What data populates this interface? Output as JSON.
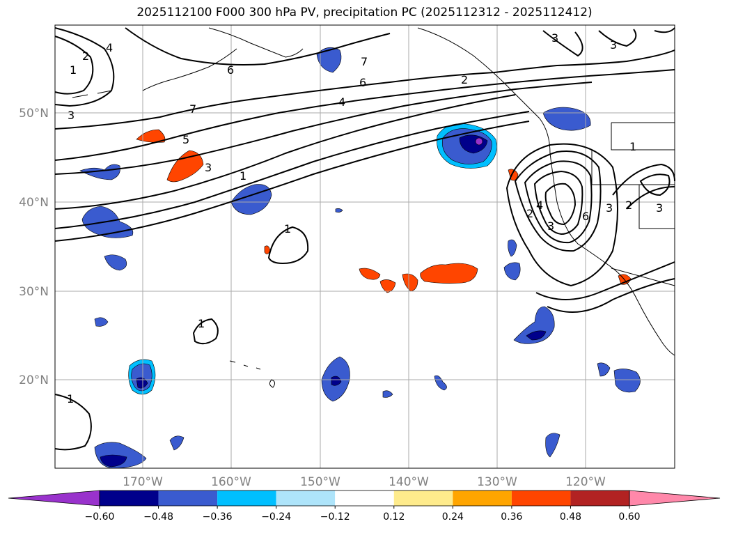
{
  "title": "2025112100 F000 300 hPa PV, precipitation PC (2025112312 - 2025112412)",
  "map": {
    "lat_labels": [
      "50°N",
      "40°N",
      "30°N",
      "20°N"
    ],
    "lon_labels": [
      "170°W",
      "160°W",
      "150°W",
      "140°W",
      "130°W",
      "120°W"
    ],
    "contour_labels": [
      "2",
      "4",
      "1",
      "3",
      "6",
      "7",
      "6",
      "4",
      "2",
      "7",
      "5",
      "3",
      "1",
      "1",
      "1",
      "1",
      "3",
      "3",
      "2",
      "4",
      "3",
      "6",
      "2",
      "3",
      "1",
      "3"
    ]
  },
  "colorbar": {
    "ticks": [
      "−0.60",
      "−0.48",
      "−0.36",
      "−0.24",
      "−0.12",
      "0.12",
      "0.24",
      "0.36",
      "0.48",
      "0.60"
    ],
    "colors": [
      "#9932cc",
      "#00008b",
      "#3a5bcf",
      "#00bfff",
      "#aee4fa",
      "#ffffff",
      "#feeb8c",
      "#ffa500",
      "#ff4500",
      "#b22222",
      "#ff88aa"
    ]
  }
}
